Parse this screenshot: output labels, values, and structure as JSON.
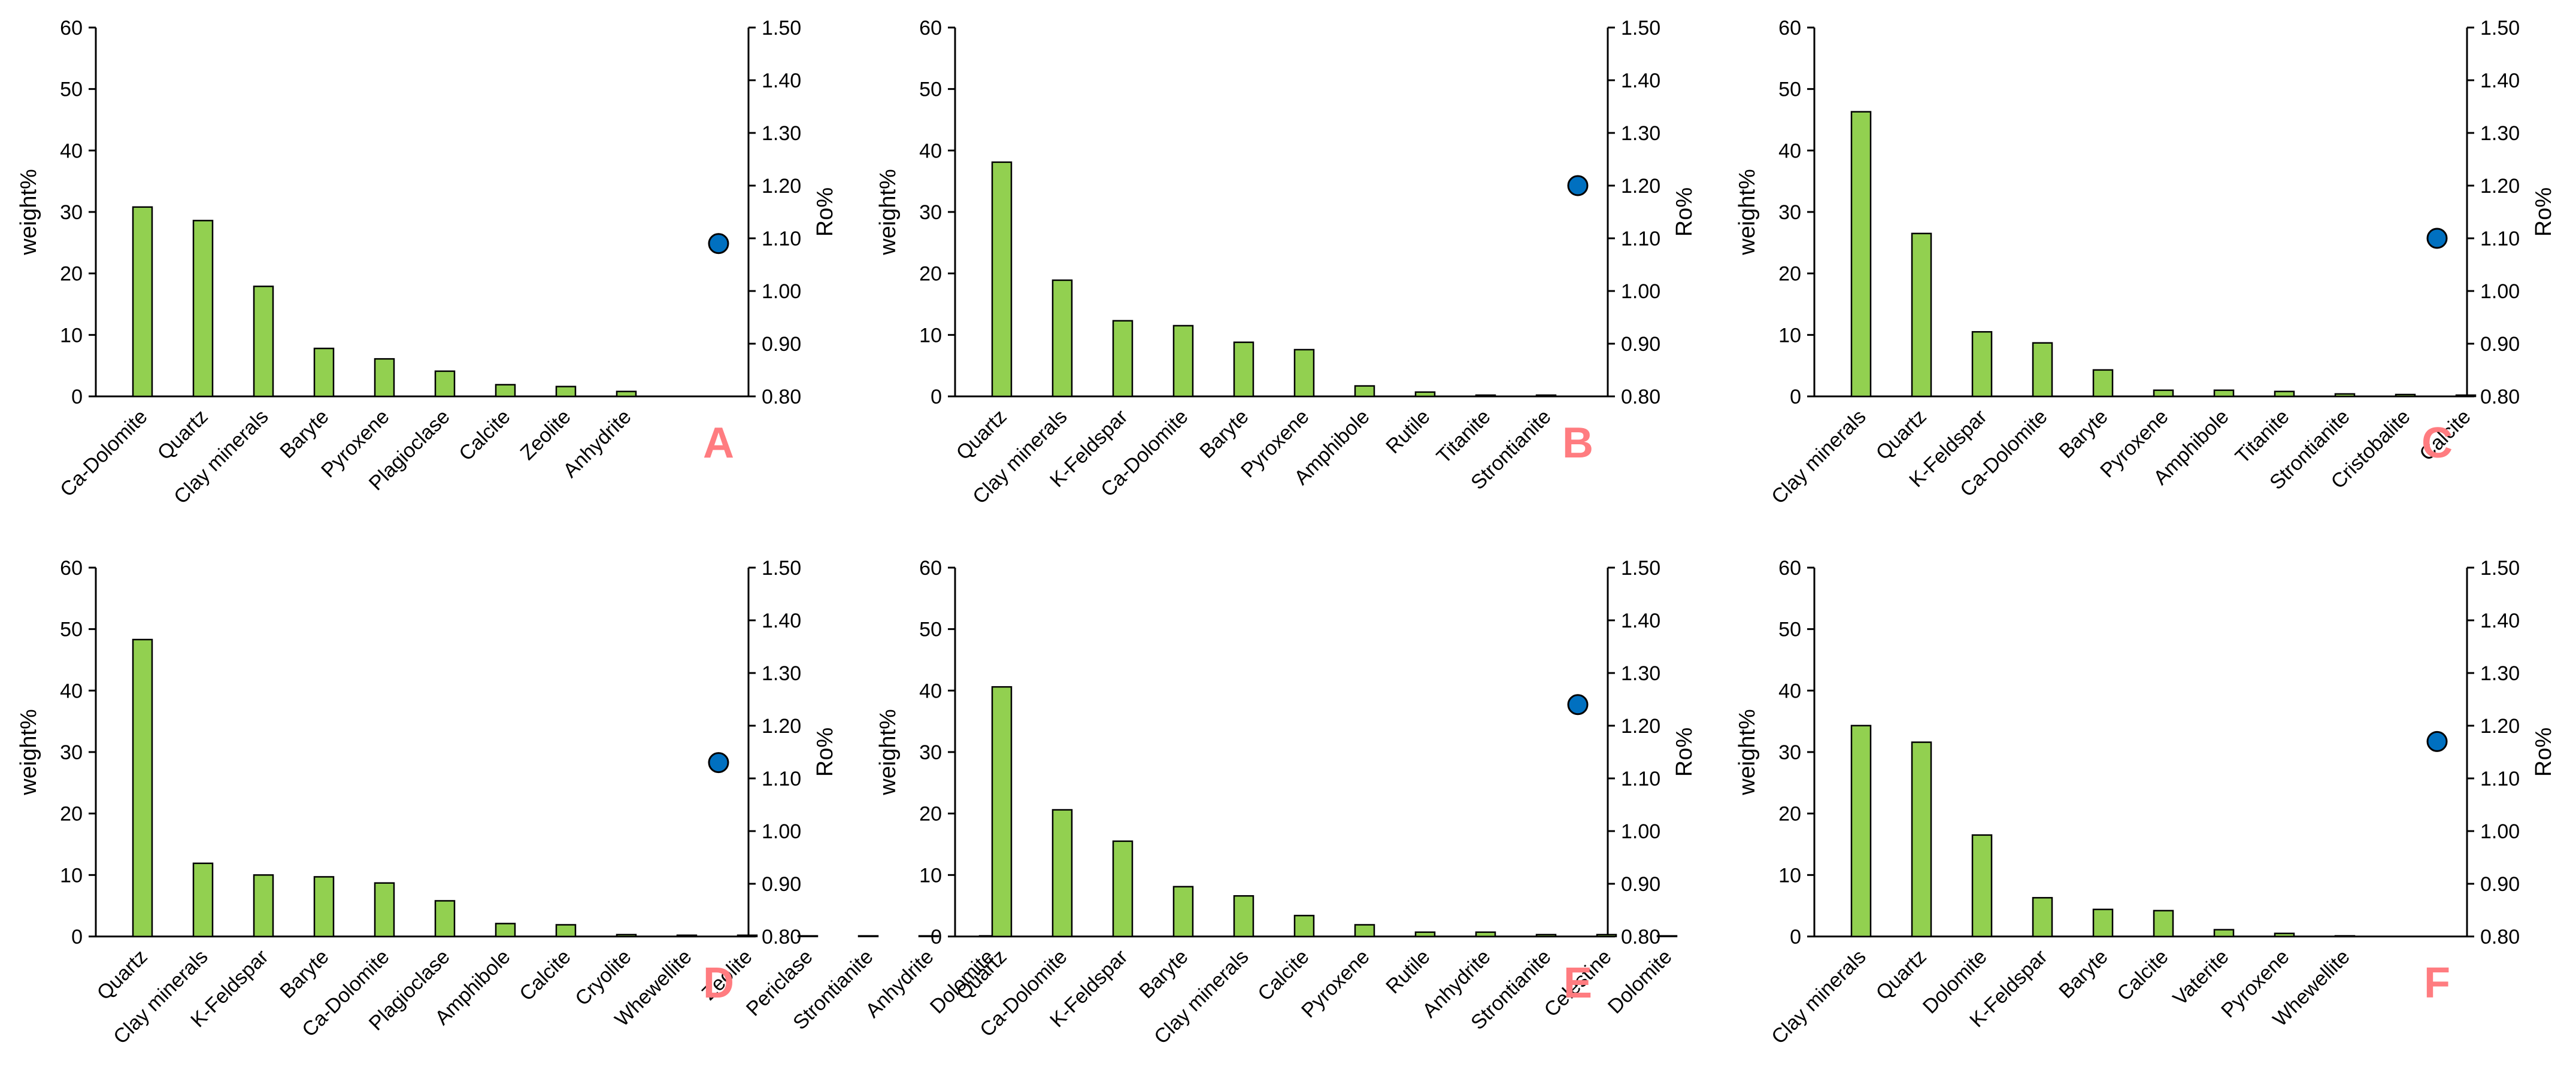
{
  "chart_data": [
    {
      "type": "bar",
      "panel_label": "A",
      "categories": [
        "Ca-Dolomite",
        "Quartz",
        "Clay minerals",
        "Baryte",
        "Pyroxene",
        "Plagioclase",
        "Calcite",
        "Zeolite",
        "Anhydrite"
      ],
      "values": [
        30.8,
        28.6,
        17.9,
        7.8,
        6.1,
        4.1,
        1.9,
        1.6,
        0.8
      ],
      "ro_value": 1.09,
      "ylabel": "weight%",
      "y2label": "Ro%",
      "ylim": [
        0,
        60
      ],
      "yticks": [
        "0",
        "10",
        "20",
        "30",
        "40",
        "50",
        "60"
      ],
      "y2lim": [
        0.8,
        1.5
      ],
      "y2ticks": [
        "0.80",
        "0.90",
        "1.00",
        "1.10",
        "1.20",
        "1.30",
        "1.40",
        "1.50"
      ]
    },
    {
      "type": "bar",
      "panel_label": "B",
      "categories": [
        "Quartz",
        "Clay minerals",
        "K-Feldspar",
        "Ca-Dolomite",
        "Baryte",
        "Pyroxene",
        "Amphibole",
        "Rutile",
        "Titanite",
        "Strontianite"
      ],
      "values": [
        38.1,
        18.9,
        12.3,
        11.5,
        8.8,
        7.6,
        1.7,
        0.7,
        0.2,
        0.2
      ],
      "ro_value": 1.2,
      "ylabel": "weight%",
      "y2label": "Ro%",
      "ylim": [
        0,
        60
      ],
      "yticks": [
        "0",
        "10",
        "20",
        "30",
        "40",
        "50",
        "60"
      ],
      "y2lim": [
        0.8,
        1.5
      ],
      "y2ticks": [
        "0.80",
        "0.90",
        "1.00",
        "1.10",
        "1.20",
        "1.30",
        "1.40",
        "1.50"
      ]
    },
    {
      "type": "bar",
      "panel_label": "C",
      "categories": [
        "Clay minerals",
        "Quartz",
        "K-Feldspar",
        "Ca-Dolomite",
        "Baryte",
        "Pyroxene",
        "Amphibole",
        "Titanite",
        "Strontianite",
        "Cristobalite",
        "Calcite"
      ],
      "values": [
        46.3,
        26.5,
        10.5,
        8.7,
        4.3,
        1.0,
        1.0,
        0.8,
        0.4,
        0.3,
        0.2
      ],
      "ro_value": 1.1,
      "ylabel": "weight%",
      "y2label": "Ro%",
      "ylim": [
        0,
        60
      ],
      "yticks": [
        "0",
        "10",
        "20",
        "30",
        "40",
        "50",
        "60"
      ],
      "y2lim": [
        0.8,
        1.5
      ],
      "y2ticks": [
        "0.80",
        "0.90",
        "1.00",
        "1.10",
        "1.20",
        "1.30",
        "1.40",
        "1.50"
      ]
    },
    {
      "type": "bar",
      "panel_label": "D",
      "categories": [
        "Quartz",
        "Clay minerals",
        "K-Feldspar",
        "Baryte",
        "Ca-Dolomite",
        "Plagioclase",
        "Amphibole",
        "Calcite",
        "Cryolite",
        "Whewellite",
        "Zeolite",
        "Periclase",
        "Strontianite",
        "Anhydrite",
        "Dolomite"
      ],
      "values": [
        48.3,
        11.9,
        10.0,
        9.7,
        8.7,
        5.8,
        2.1,
        1.9,
        0.3,
        0.2,
        0.2,
        0.1,
        0.1,
        0.1,
        0.1
      ],
      "ro_value": 1.13,
      "ylabel": "weight%",
      "y2label": "Ro%",
      "ylim": [
        0,
        60
      ],
      "yticks": [
        "0",
        "10",
        "20",
        "30",
        "40",
        "50",
        "60"
      ],
      "y2lim": [
        0.8,
        1.5
      ],
      "y2ticks": [
        "0.80",
        "0.90",
        "1.00",
        "1.10",
        "1.20",
        "1.30",
        "1.40",
        "1.50"
      ]
    },
    {
      "type": "bar",
      "panel_label": "E",
      "categories": [
        "Quartz",
        "Ca-Dolomite",
        "K-Feldspar",
        "Baryte",
        "Clay minerals",
        "Calcite",
        "Pyroxene",
        "Rutile",
        "Anhydrite",
        "Strontianite",
        "Celestine",
        "Dolomite"
      ],
      "values": [
        40.6,
        20.6,
        15.5,
        8.1,
        6.6,
        3.4,
        1.9,
        0.7,
        0.7,
        0.3,
        0.3,
        0.1
      ],
      "ro_value": 1.24,
      "ylabel": "weight%",
      "y2label": "Ro%",
      "ylim": [
        0,
        60
      ],
      "yticks": [
        "0",
        "10",
        "20",
        "30",
        "40",
        "50",
        "60"
      ],
      "y2lim": [
        0.8,
        1.5
      ],
      "y2ticks": [
        "0.80",
        "0.90",
        "1.00",
        "1.10",
        "1.20",
        "1.30",
        "1.40",
        "1.50"
      ]
    },
    {
      "type": "bar",
      "panel_label": "F",
      "categories": [
        "Clay minerals",
        "Quartz",
        "Dolomite",
        "K-Feldspar",
        "Baryte",
        "Calcite",
        "Vaterite",
        "Pyroxene",
        "Whewellite"
      ],
      "values": [
        34.3,
        31.6,
        16.5,
        6.3,
        4.4,
        4.2,
        1.1,
        0.5,
        0.1
      ],
      "ro_value": 1.17,
      "ylabel": "weight%",
      "y2label": "Ro%",
      "ylim": [
        0,
        60
      ],
      "yticks": [
        "0",
        "10",
        "20",
        "30",
        "40",
        "50",
        "60"
      ],
      "y2lim": [
        0.8,
        1.5
      ],
      "y2ticks": [
        "0.80",
        "0.90",
        "1.00",
        "1.10",
        "1.20",
        "1.30",
        "1.40",
        "1.50"
      ]
    }
  ],
  "colors": {
    "bar_fill": "#92D050",
    "bar_stroke": "#000000",
    "marker_fill": "#0070C0",
    "marker_stroke": "#000000",
    "panel_label": "#FF7C80",
    "axis": "#000000"
  }
}
